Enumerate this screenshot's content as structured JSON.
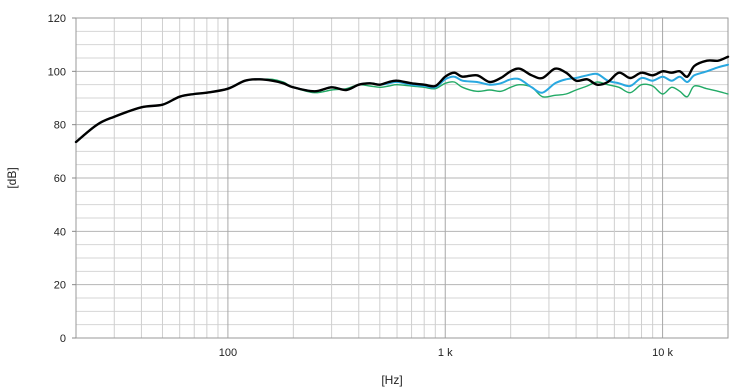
{
  "chart_data": {
    "type": "line",
    "xlabel": "[Hz]",
    "ylabel": "[dB]",
    "x_scale": "log",
    "xlim": [
      20,
      20000
    ],
    "ylim": [
      0,
      120
    ],
    "grid": true,
    "y_ticks": [
      0,
      20,
      40,
      60,
      80,
      100,
      120
    ],
    "y_tick_labels": [
      "0",
      "20",
      "40",
      "60",
      "80",
      "100",
      "120"
    ],
    "x_ticks": [
      100,
      1000,
      10000
    ],
    "x_tick_labels": [
      "100",
      "1 k",
      "10 k"
    ],
    "series": [
      {
        "color": "#000000",
        "x": [
          20,
          25,
          30,
          40,
          50,
          60,
          70,
          80,
          100,
          120,
          140,
          160,
          180,
          200,
          250,
          300,
          350,
          400,
          450,
          500,
          550,
          600,
          700,
          800,
          900,
          1000,
          1100,
          1200,
          1400,
          1600,
          1800,
          2000,
          2200,
          2500,
          2800,
          3200,
          3600,
          4000,
          4500,
          5000,
          5600,
          6300,
          7100,
          8000,
          9000,
          10000,
          11000,
          12000,
          13000,
          14000,
          16000,
          18000,
          20000
        ],
        "y": [
          73.5,
          80,
          83,
          86.5,
          87.5,
          90.5,
          91.5,
          92,
          93.5,
          96.5,
          97,
          96.5,
          95.5,
          94,
          92.5,
          94,
          93,
          95,
          95.5,
          95,
          96,
          96.5,
          95.5,
          95,
          94.5,
          98,
          99.5,
          98,
          98.5,
          96,
          97.5,
          100,
          101,
          98.5,
          97.5,
          101,
          99.5,
          96.5,
          97,
          95,
          96,
          99.5,
          97.5,
          99.5,
          98.5,
          100,
          99.5,
          100,
          98,
          102,
          104,
          104,
          105.5
        ]
      },
      {
        "color": "#29a8e0",
        "x": [
          20,
          25,
          30,
          40,
          50,
          60,
          70,
          80,
          100,
          120,
          140,
          160,
          180,
          200,
          250,
          300,
          350,
          400,
          450,
          500,
          550,
          600,
          700,
          800,
          900,
          1000,
          1100,
          1200,
          1400,
          1600,
          1800,
          2000,
          2200,
          2500,
          2800,
          3200,
          3600,
          4000,
          4500,
          5000,
          5600,
          6300,
          7100,
          8000,
          9000,
          10000,
          11000,
          12000,
          13000,
          14000,
          16000,
          18000,
          20000
        ],
        "y": [
          73.5,
          80,
          83,
          86.5,
          87.5,
          90.5,
          91.5,
          92,
          93.5,
          96.5,
          97,
          96.5,
          95.5,
          94,
          92.5,
          94,
          93,
          95,
          95.5,
          95,
          95.5,
          96,
          95,
          94.5,
          94,
          97,
          98,
          96.5,
          96,
          95,
          95.5,
          97,
          97,
          94,
          92,
          95.5,
          97,
          97.5,
          98.5,
          99,
          96.5,
          95.5,
          94.5,
          97.5,
          96.5,
          98,
          96.5,
          98,
          96,
          98.5,
          100,
          101.5,
          102.5
        ]
      },
      {
        "color": "#22aa66",
        "x": [
          20,
          25,
          30,
          40,
          50,
          60,
          70,
          80,
          100,
          120,
          140,
          160,
          180,
          200,
          250,
          300,
          350,
          400,
          450,
          500,
          550,
          600,
          700,
          800,
          900,
          1000,
          1100,
          1200,
          1400,
          1600,
          1800,
          2000,
          2200,
          2500,
          2800,
          3200,
          3600,
          4000,
          4500,
          5000,
          5600,
          6300,
          7100,
          8000,
          9000,
          10000,
          11000,
          12000,
          13000,
          14000,
          16000,
          18000,
          20000
        ],
        "y": [
          73.5,
          80,
          83,
          86.5,
          87.5,
          90.5,
          91.5,
          92,
          93.5,
          96.5,
          97,
          97,
          96,
          94,
          92,
          93,
          93.5,
          95,
          94.5,
          94,
          94.5,
          95,
          94.5,
          94,
          93.5,
          95.5,
          96,
          94,
          92.5,
          93,
          92.5,
          94,
          95,
          94,
          90.5,
          91,
          91.5,
          93,
          94.5,
          96,
          95,
          94,
          92,
          95,
          94.5,
          91.5,
          94,
          92.5,
          90.5,
          94.5,
          93.5,
          92.5,
          91.5
        ]
      }
    ]
  }
}
